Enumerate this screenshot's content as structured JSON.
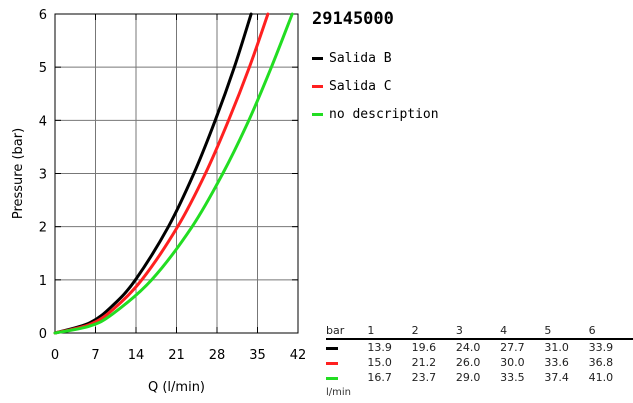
{
  "chart_data": {
    "type": "line",
    "title": "29145000",
    "xlabel": "Q (l/min)",
    "ylabel": "Pressure (bar)",
    "xlim": [
      0,
      42
    ],
    "ylim": [
      0,
      6
    ],
    "xticks": [
      0,
      7,
      14,
      21,
      28,
      35,
      42
    ],
    "yticks": [
      0,
      1,
      2,
      3,
      4,
      5,
      6
    ],
    "grid": true,
    "legend_position": "right",
    "series": [
      {
        "name": "Salida B",
        "color": "#000000",
        "points": [
          [
            0,
            0
          ],
          [
            6,
            0.19
          ],
          [
            10,
            0.52
          ],
          [
            13.9,
            1
          ],
          [
            19.6,
            2
          ],
          [
            24,
            3
          ],
          [
            27.7,
            4
          ],
          [
            31,
            5
          ],
          [
            33.9,
            6
          ]
        ]
      },
      {
        "name": "Salida C",
        "color": "#ff2020",
        "points": [
          [
            0,
            0
          ],
          [
            6,
            0.16
          ],
          [
            10,
            0.44
          ],
          [
            15,
            1
          ],
          [
            21.2,
            2
          ],
          [
            26,
            3
          ],
          [
            30,
            4
          ],
          [
            33.6,
            5
          ],
          [
            36.8,
            6
          ]
        ]
      },
      {
        "name": "no description",
        "color": "#22dd22",
        "points": [
          [
            0,
            0
          ],
          [
            6,
            0.13
          ],
          [
            10,
            0.36
          ],
          [
            16.7,
            1
          ],
          [
            23.7,
            2
          ],
          [
            29,
            3
          ],
          [
            33.5,
            4
          ],
          [
            37.4,
            5
          ],
          [
            41,
            6
          ]
        ]
      }
    ]
  },
  "table": {
    "unit_label": "bar",
    "flow_unit": "l/min",
    "columns": [
      "1",
      "2",
      "3",
      "4",
      "5",
      "6"
    ],
    "rows": [
      {
        "color": "#000000",
        "values": [
          "13.9",
          "19.6",
          "24.0",
          "27.7",
          "31.0",
          "33.9"
        ]
      },
      {
        "color": "#ff2020",
        "values": [
          "15.0",
          "21.2",
          "26.0",
          "30.0",
          "33.6",
          "36.8"
        ]
      },
      {
        "color": "#22dd22",
        "values": [
          "16.7",
          "23.7",
          "29.0",
          "33.5",
          "37.4",
          "41.0"
        ]
      }
    ]
  }
}
